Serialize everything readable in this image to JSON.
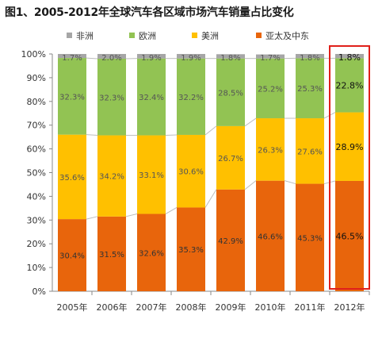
{
  "chart_data": {
    "type": "bar",
    "stacked": true,
    "percent_stacked": true,
    "title": "图1、2005-2012年全球汽车各区域市场汽车销量占比变化",
    "categories": [
      "2005年",
      "2006年",
      "2007年",
      "2008年",
      "2009年",
      "2010年",
      "2011年",
      "2012年"
    ],
    "series": [
      {
        "name": "亚太及中东",
        "color": "#e8650c",
        "values": [
          30.4,
          31.5,
          32.6,
          35.3,
          42.9,
          46.6,
          45.3,
          46.5
        ],
        "labels": [
          "30.4%",
          "31.5%",
          "32.6%",
          "35.3%",
          "42.9%",
          "46.6%",
          "45.3%",
          "46.5%"
        ]
      },
      {
        "name": "美洲",
        "color": "#ffc000",
        "values": [
          35.6,
          34.2,
          33.1,
          30.6,
          26.7,
          26.3,
          27.6,
          28.9
        ],
        "labels": [
          "35.6%",
          "34.2%",
          "33.1%",
          "30.6%",
          "26.7%",
          "26.3%",
          "27.6%",
          "28.9%"
        ]
      },
      {
        "name": "欧洲",
        "color": "#92c353",
        "values": [
          32.3,
          32.3,
          32.4,
          32.2,
          28.5,
          25.2,
          25.3,
          22.8
        ],
        "labels": [
          "32.3%",
          "32.3%",
          "32.4%",
          "32.2%",
          "28.5%",
          "25.2%",
          "25.3%",
          "22.8%"
        ]
      },
      {
        "name": "非洲",
        "color": "#a6a6a6",
        "values": [
          1.7,
          2.0,
          1.9,
          1.9,
          1.8,
          1.7,
          1.8,
          1.8
        ],
        "labels": [
          "1.7%",
          "2.0%",
          "1.9%",
          "1.9%",
          "1.8%",
          "1.7%",
          "1.8%",
          "1.8%"
        ]
      }
    ],
    "legend_order": [
      "非洲",
      "欧洲",
      "美洲",
      "亚太及中东"
    ],
    "y_ticks": [
      "0%",
      "10%",
      "20%",
      "30%",
      "40%",
      "50%",
      "60%",
      "70%",
      "80%",
      "90%",
      "100%"
    ],
    "ylim": [
      0,
      100
    ],
    "series_lines": true,
    "highlighted_category": "2012年",
    "highlight_color": "#e0201a",
    "grid": false,
    "legend_position": "top"
  }
}
